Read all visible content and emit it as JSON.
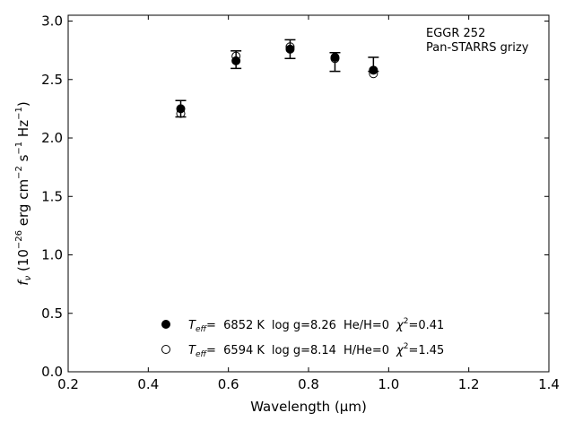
{
  "chart_data": {
    "type": "scatter",
    "xlabel": "Wavelength (μm)",
    "ylabel_parts": [
      "f",
      "ν",
      " (10",
      "−26",
      " erg cm",
      "−2",
      " s",
      "−1",
      " Hz",
      "−1",
      ")"
    ],
    "xlim": [
      0.2,
      1.4
    ],
    "ylim": [
      0.0,
      3.05
    ],
    "x_ticks": [
      0.2,
      0.4,
      0.6,
      0.8,
      1.0,
      1.2,
      1.4
    ],
    "x_tick_labels": [
      "0.2",
      "0.4",
      "0.6",
      "0.8",
      "1.0",
      "1.2",
      "1.4"
    ],
    "y_ticks": [
      0.0,
      0.5,
      1.0,
      1.5,
      2.0,
      2.5,
      3.0
    ],
    "y_tick_labels": [
      "0.0",
      "0.5",
      "1.0",
      "1.5",
      "2.0",
      "2.5",
      "3.0"
    ],
    "annotation_lines": [
      "EGGR 252",
      "Pan-STARRS grizy"
    ],
    "observed": {
      "x": [
        0.481,
        0.619,
        0.754,
        0.866,
        0.962
      ],
      "y": [
        2.25,
        2.67,
        2.76,
        2.65,
        2.63
      ],
      "err": [
        0.07,
        0.075,
        0.08,
        0.08,
        0.06
      ]
    },
    "series": [
      {
        "marker": "filled-circle",
        "x": [
          0.481,
          0.619,
          0.754,
          0.866,
          0.962
        ],
        "y": [
          2.25,
          2.66,
          2.76,
          2.69,
          2.58
        ],
        "legend": {
          "teff_label": "T",
          "teff_sub": "eff",
          "teff_value": "=  6852 K",
          "logg": "log g=8.26",
          "comp": "He/H=0",
          "chi_label": "χ",
          "chi_sup": "2",
          "chi_value": "=0.41"
        }
      },
      {
        "marker": "open-circle",
        "x": [
          0.481,
          0.619,
          0.754,
          0.866,
          0.962
        ],
        "y": [
          2.21,
          2.7,
          2.78,
          2.68,
          2.55
        ],
        "legend": {
          "teff_label": "T",
          "teff_sub": "eff",
          "teff_value": "=  6594 K",
          "logg": "log g=8.14",
          "comp": "H/He=0",
          "chi_label": "χ",
          "chi_sup": "2",
          "chi_value": "=1.45"
        }
      }
    ]
  }
}
